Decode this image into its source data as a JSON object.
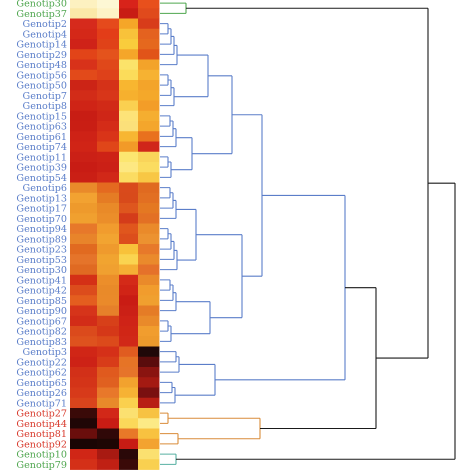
{
  "colors": {
    "green": "#4fa64f",
    "blue": "#5b7ec9",
    "red": "#d83a2c",
    "orange": "#d98c3a",
    "black": "#1a1a1a",
    "teal": "#57b0a2"
  },
  "heatmap": {
    "rows": [
      {
        "label": "Genotip30",
        "group": "green",
        "cells": [
          "#fdf1c0",
          "#fdf7d4",
          "#d8231a",
          "#e8501c"
        ]
      },
      {
        "label": "Genotip37",
        "group": "green",
        "cells": [
          "#fbe9a8",
          "#fdf3c6",
          "#c81c14",
          "#e04a1c"
        ]
      },
      {
        "label": "Genotip2",
        "group": "blue",
        "cells": [
          "#d62a1c",
          "#e54a1c",
          "#f5a628",
          "#d83c1a"
        ]
      },
      {
        "label": "Genotip4",
        "group": "blue",
        "cells": [
          "#d42818",
          "#e33d18",
          "#f8c23a",
          "#e4621f"
        ]
      },
      {
        "label": "Genotip14",
        "group": "blue",
        "cells": [
          "#cf2218",
          "#e04218",
          "#f9cc3c",
          "#e5681e"
        ]
      },
      {
        "label": "Genotip29",
        "group": "blue",
        "cells": [
          "#e24418",
          "#e4531c",
          "#f5a629",
          "#e15419"
        ]
      },
      {
        "label": "Genotip48",
        "group": "blue",
        "cells": [
          "#d8321a",
          "#e0481a",
          "#fbe36a",
          "#f3a32a"
        ]
      },
      {
        "label": "Genotip56",
        "group": "blue",
        "cells": [
          "#e24a1a",
          "#de411a",
          "#fbdc5a",
          "#f6b232"
        ]
      },
      {
        "label": "Genotip50",
        "group": "blue",
        "cells": [
          "#cc2416",
          "#d53218",
          "#f8b630",
          "#f3a42a"
        ]
      },
      {
        "label": "Genotip7",
        "group": "blue",
        "cells": [
          "#d22c18",
          "#d83619",
          "#f6b02e",
          "#f4a82a"
        ]
      },
      {
        "label": "Genotip8",
        "group": "blue",
        "cells": [
          "#cf2416",
          "#d12a17",
          "#fad050",
          "#f39d28"
        ]
      },
      {
        "label": "Genotip15",
        "group": "blue",
        "cells": [
          "#c81d14",
          "#cf2617",
          "#fde378",
          "#f5ae30"
        ]
      },
      {
        "label": "Genotip63",
        "group": "blue",
        "cells": [
          "#c91e14",
          "#d42c18",
          "#fbe07a",
          "#f4a62c"
        ]
      },
      {
        "label": "Genotip61",
        "group": "blue",
        "cells": [
          "#ce2216",
          "#d93418",
          "#f7b632",
          "#e9711e"
        ]
      },
      {
        "label": "Genotip74",
        "group": "blue",
        "cells": [
          "#d02416",
          "#e04619",
          "#f29a28",
          "#d0261a"
        ]
      },
      {
        "label": "Genotip11",
        "group": "blue",
        "cells": [
          "#cb2016",
          "#cd2216",
          "#fce670",
          "#f9d45a"
        ]
      },
      {
        "label": "Genotip39",
        "group": "blue",
        "cells": [
          "#c81c14",
          "#cb2016",
          "#fde882",
          "#fbdc60"
        ]
      },
      {
        "label": "Genotip54",
        "group": "blue",
        "cells": [
          "#ca1f15",
          "#d12818",
          "#fbdc62",
          "#f8c744"
        ]
      },
      {
        "label": "Genotip6",
        "group": "blue",
        "cells": [
          "#e98a2a",
          "#e46a20",
          "#d94a1c",
          "#e06a20"
        ]
      },
      {
        "label": "Genotip13",
        "group": "blue",
        "cells": [
          "#f2a231",
          "#e57c24",
          "#d84a1b",
          "#e26f22"
        ]
      },
      {
        "label": "Genotip17",
        "group": "blue",
        "cells": [
          "#ee9a2c",
          "#e98a28",
          "#de561e",
          "#e47822"
        ]
      },
      {
        "label": "Genotip70",
        "group": "blue",
        "cells": [
          "#f0a02f",
          "#eb8e2a",
          "#d43c1a",
          "#e37024"
        ]
      },
      {
        "label": "Genotip94",
        "group": "blue",
        "cells": [
          "#e7782a",
          "#f19c2e",
          "#e0561d",
          "#ea8a2a"
        ]
      },
      {
        "label": "Genotip89",
        "group": "blue",
        "cells": [
          "#e8842a",
          "#f2a431",
          "#dc4e1c",
          "#ec9230"
        ]
      },
      {
        "label": "Genotip23",
        "group": "blue",
        "cells": [
          "#e16a20",
          "#ef9a2d",
          "#f8c23a",
          "#e7792a"
        ]
      },
      {
        "label": "Genotip53",
        "group": "blue",
        "cells": [
          "#e5742a",
          "#f1a430",
          "#fad450",
          "#ea8a2c"
        ]
      },
      {
        "label": "Genotip30",
        "group": "blue",
        "cells": [
          "#e06a22",
          "#f0a030",
          "#f5ae34",
          "#e5712a"
        ]
      },
      {
        "label": "Genotip41",
        "group": "blue",
        "cells": [
          "#d43016",
          "#ec8e2a",
          "#d42a18",
          "#ea8a2a"
        ]
      },
      {
        "label": "Genotip42",
        "group": "blue",
        "cells": [
          "#dc4c1c",
          "#e98a29",
          "#d02416",
          "#f19c2d"
        ]
      },
      {
        "label": "Genotip85",
        "group": "blue",
        "cells": [
          "#e45e1f",
          "#ea8a2a",
          "#c91c14",
          "#f0a02f"
        ]
      },
      {
        "label": "Genotip90",
        "group": "blue",
        "cells": [
          "#d6341a",
          "#e6802a",
          "#cb2016",
          "#e57c26"
        ]
      },
      {
        "label": "Genotip67",
        "group": "blue",
        "cells": [
          "#d22c18",
          "#d74019",
          "#cf2317",
          "#e98a2a"
        ]
      },
      {
        "label": "Genotip82",
        "group": "blue",
        "cells": [
          "#db4a1c",
          "#d53818",
          "#d02616",
          "#f19d2e"
        ]
      },
      {
        "label": "Genotip83",
        "group": "blue",
        "cells": [
          "#de521e",
          "#dc4a1b",
          "#d12818",
          "#ee9a2c"
        ]
      },
      {
        "label": "Genotip3",
        "group": "blue",
        "cells": [
          "#d02616",
          "#d53018",
          "#e05c20",
          "#200808"
        ]
      },
      {
        "label": "Genotip22",
        "group": "blue",
        "cells": [
          "#cd2216",
          "#d83c19",
          "#e67426",
          "#5a0c0c"
        ]
      },
      {
        "label": "Genotip62",
        "group": "blue",
        "cells": [
          "#d23018",
          "#e05a1e",
          "#e6742a",
          "#8a1410"
        ]
      },
      {
        "label": "Genotip65",
        "group": "blue",
        "cells": [
          "#d43418",
          "#e06020",
          "#f2a22e",
          "#a41a12"
        ]
      },
      {
        "label": "Genotip26",
        "group": "blue",
        "cells": [
          "#d73a1a",
          "#e8782a",
          "#f6b234",
          "#7a1010"
        ]
      },
      {
        "label": "Genotip71",
        "group": "blue",
        "cells": [
          "#da441c",
          "#e88a2a",
          "#fad04e",
          "#b81e14"
        ]
      },
      {
        "label": "Genotip27",
        "group": "red",
        "cells": [
          "#3a0a08",
          "#d22818",
          "#fbe070",
          "#f7c242"
        ]
      },
      {
        "label": "Genotip44",
        "group": "red",
        "cells": [
          "#200606",
          "#c81c14",
          "#fbd85a",
          "#fcea86"
        ]
      },
      {
        "label": "Genotip81",
        "group": "red",
        "cells": [
          "#6a0e0c",
          "#300808",
          "#e87828",
          "#f8c240"
        ]
      },
      {
        "label": "Genotip92",
        "group": "red",
        "cells": [
          "#1a0504",
          "#1e0604",
          "#c81c14",
          "#f3a330"
        ]
      },
      {
        "label": "Genotip10",
        "group": "green",
        "cells": [
          "#d02616",
          "#a81a12",
          "#2a0808",
          "#fbe070"
        ]
      },
      {
        "label": "Genotip79",
        "group": "green",
        "cells": [
          "#d43018",
          "#c02014",
          "#3a0a08",
          "#f9d050"
        ]
      }
    ]
  }
}
